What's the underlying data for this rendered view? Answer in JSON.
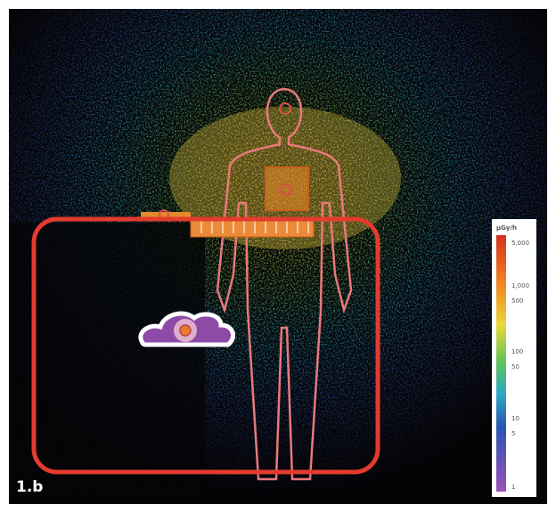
{
  "panel_label": "1.b",
  "colorbar": {
    "title": "µGy/h",
    "tick_labels": [
      "5,000",
      "1,000",
      "500",
      "100",
      "50",
      "10",
      "5",
      "1"
    ]
  }
}
